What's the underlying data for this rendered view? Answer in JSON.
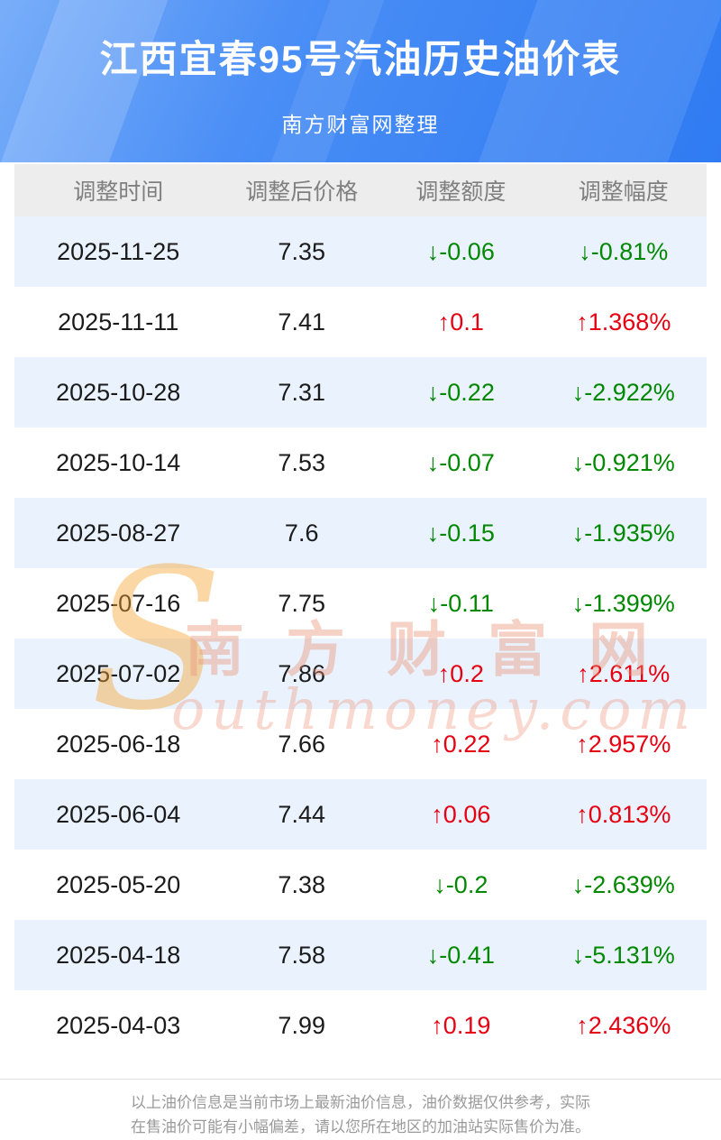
{
  "header": {
    "title": "江西宜春95号汽油历史油价表",
    "subtitle": "南方财富网整理"
  },
  "table": {
    "columns": [
      "调整时间",
      "调整后价格",
      "调整额度",
      "调整幅度"
    ],
    "rows": [
      {
        "date": "2025-11-25",
        "price": "7.35",
        "change": "↓-0.06",
        "pct": "↓-0.81%",
        "dir": "down"
      },
      {
        "date": "2025-11-11",
        "price": "7.41",
        "change": "↑0.1",
        "pct": "↑1.368%",
        "dir": "up"
      },
      {
        "date": "2025-10-28",
        "price": "7.31",
        "change": "↓-0.22",
        "pct": "↓-2.922%",
        "dir": "down"
      },
      {
        "date": "2025-10-14",
        "price": "7.53",
        "change": "↓-0.07",
        "pct": "↓-0.921%",
        "dir": "down"
      },
      {
        "date": "2025-08-27",
        "price": "7.6",
        "change": "↓-0.15",
        "pct": "↓-1.935%",
        "dir": "down"
      },
      {
        "date": "2025-07-16",
        "price": "7.75",
        "change": "↓-0.11",
        "pct": "↓-1.399%",
        "dir": "down"
      },
      {
        "date": "2025-07-02",
        "price": "7.86",
        "change": "↑0.2",
        "pct": "↑2.611%",
        "dir": "up"
      },
      {
        "date": "2025-06-18",
        "price": "7.66",
        "change": "↑0.22",
        "pct": "↑2.957%",
        "dir": "up"
      },
      {
        "date": "2025-06-04",
        "price": "7.44",
        "change": "↑0.06",
        "pct": "↑0.813%",
        "dir": "up"
      },
      {
        "date": "2025-05-20",
        "price": "7.38",
        "change": "↓-0.2",
        "pct": "↓-2.639%",
        "dir": "down"
      },
      {
        "date": "2025-04-18",
        "price": "7.58",
        "change": "↓-0.41",
        "pct": "↓-5.131%",
        "dir": "down"
      },
      {
        "date": "2025-04-03",
        "price": "7.99",
        "change": "↑0.19",
        "pct": "↑2.436%",
        "dir": "up"
      }
    ]
  },
  "watermark": {
    "s_letter": "S",
    "cn": "南方财富网",
    "en": "outhmoney.com"
  },
  "footer": {
    "line1": "以上油价信息是当前市场上最新油价信息，油价数据仅供参考，实际",
    "line2": "在售油价可能有小幅偏差，请以您所在地区的加油站实际售价为准。"
  },
  "colors": {
    "up_red": "#e60012",
    "down_green": "#008800",
    "banner_blue": "#3d85f3",
    "row_alt_blue": "#e9f2fd"
  },
  "chart_data": {
    "type": "table",
    "title": "江西宜春95号汽油历史油价表",
    "subtitle": "南方财富网整理",
    "columns": [
      "调整时间",
      "调整后价格",
      "调整额度",
      "调整幅度"
    ],
    "rows": [
      [
        "2025-11-25",
        7.35,
        -0.06,
        "-0.81%"
      ],
      [
        "2025-11-11",
        7.41,
        0.1,
        "+1.368%"
      ],
      [
        "2025-10-28",
        7.31,
        -0.22,
        "-2.922%"
      ],
      [
        "2025-10-14",
        7.53,
        -0.07,
        "-0.921%"
      ],
      [
        "2025-08-27",
        7.6,
        -0.15,
        "-1.935%"
      ],
      [
        "2025-07-16",
        7.75,
        -0.11,
        "-1.399%"
      ],
      [
        "2025-07-02",
        7.86,
        0.2,
        "+2.611%"
      ],
      [
        "2025-06-18",
        7.66,
        0.22,
        "+2.957%"
      ],
      [
        "2025-06-04",
        7.44,
        0.06,
        "+0.813%"
      ],
      [
        "2025-05-20",
        7.38,
        -0.2,
        "-2.639%"
      ],
      [
        "2025-04-18",
        7.58,
        -0.41,
        "-5.131%"
      ],
      [
        "2025-04-03",
        7.99,
        0.19,
        "+2.436%"
      ]
    ]
  }
}
